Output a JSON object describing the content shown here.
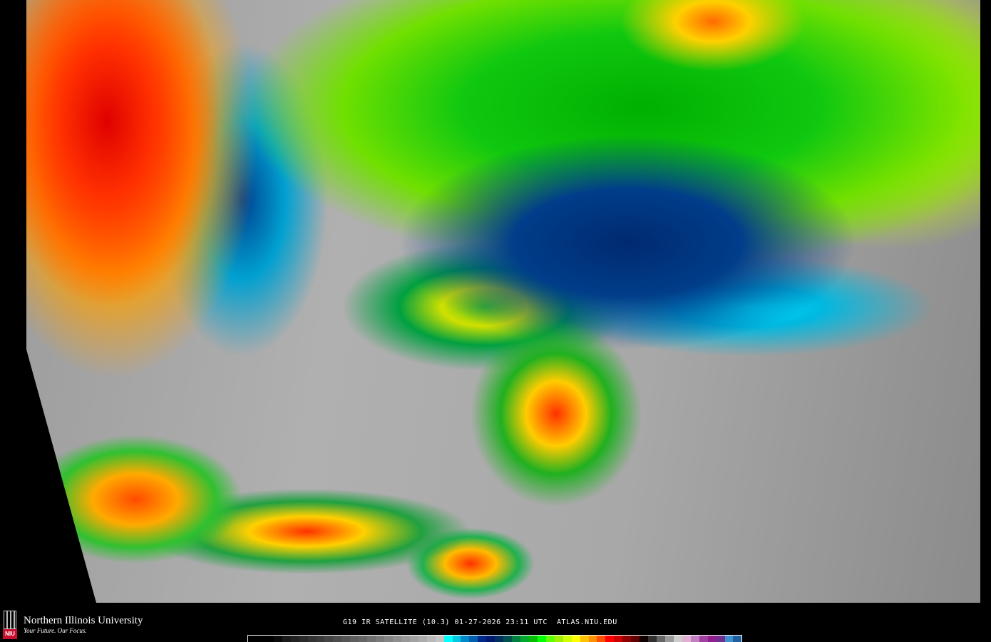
{
  "map": {
    "product": "IR satellite imagery, continental United States",
    "colors": {
      "cold_tops_red": "#e00000",
      "orange": "#ffa000",
      "yellow": "#ffd000",
      "green": "#10c810",
      "navy": "#003d8a",
      "cyan": "#00e0ff",
      "clear_gray": "#a8a8a8"
    }
  },
  "footer": {
    "logo": {
      "university": "Northern Illinois University",
      "tagline": "Your Future. Our Focus.",
      "badge": "NIU"
    },
    "title": "G19 IR SATELLITE (10.3) 01-27-2026 23:11 UTC  ATLAS.NIU.EDU",
    "colorbar": [
      "#000000",
      "#000000",
      "#000000",
      "#0a0a0a",
      "#1a1a1a",
      "#222",
      "#2a2a2a",
      "#333",
      "#3a3a3a",
      "#444",
      "#4c4c4c",
      "#555",
      "#5e5e5e",
      "#666",
      "#707070",
      "#7a7a7a",
      "#848484",
      "#8e8e8e",
      "#989898",
      "#a2a2a2",
      "#acacac",
      "#b8b8b8",
      "#c4c4c4",
      "#00ffff",
      "#00c8e0",
      "#0088cc",
      "#0060b0",
      "#002a8a",
      "#001a70",
      "#003060",
      "#005050",
      "#008040",
      "#00a830",
      "#00c000",
      "#00ff00",
      "#60ff00",
      "#a0f000",
      "#d0ff00",
      "#ffff00",
      "#ffc000",
      "#ff9000",
      "#ff5000",
      "#ff0000",
      "#d00000",
      "#900000",
      "#600000",
      "#100000",
      "#303030",
      "#666666",
      "#999999",
      "#cccccc",
      "#e0b0d0",
      "#c080c0",
      "#a040a0",
      "#902090",
      "#703090",
      "#4090d0",
      "#2060a0"
    ]
  }
}
